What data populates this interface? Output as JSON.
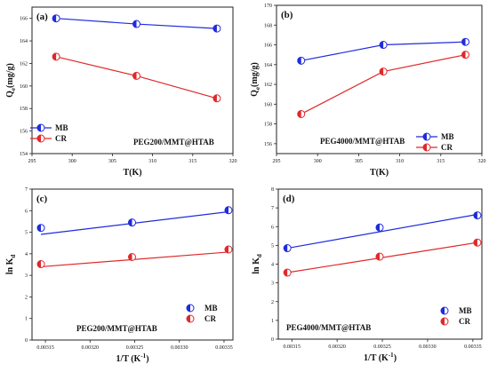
{
  "colors": {
    "mb": "#1f2bdc",
    "cr": "#e0282a",
    "fit": "#1f2bdc",
    "fit_cr": "#e0282a"
  },
  "chart_data": [
    {
      "type": "line",
      "panel_label": "(a)",
      "annotation": "PEG200/MMT@HTAB",
      "xlabel": "T(K)",
      "ylabel": "Qe(mg/g)",
      "ylabel_main": "Q",
      "ylabel_sub": "e",
      "ylabel_rest": "(mg/g)",
      "xlim": [
        295,
        320
      ],
      "ylim": [
        154,
        167
      ],
      "xticks": [
        "295",
        "300",
        "305",
        "310",
        "315",
        "320"
      ],
      "yticks": [
        "154",
        "156",
        "158",
        "160",
        "162",
        "164",
        "166"
      ],
      "legend_position": "bottom-left",
      "series": [
        {
          "name": "MB",
          "x": [
            298,
            308,
            318
          ],
          "values": [
            166.0,
            165.5,
            165.1
          ],
          "style": "line"
        },
        {
          "name": "CR",
          "x": [
            298,
            308,
            318
          ],
          "values": [
            162.6,
            160.9,
            158.9
          ],
          "style": "line"
        }
      ]
    },
    {
      "type": "line",
      "panel_label": "(b)",
      "annotation": "PEG4000/MMT@HTAB",
      "xlabel": "T(K)",
      "ylabel": "Qe(mg/g)",
      "ylabel_main": "Q",
      "ylabel_sub": "e",
      "ylabel_rest": "(mg/g)",
      "xlim": [
        295,
        320
      ],
      "ylim": [
        155,
        170
      ],
      "xticks": [
        "295",
        "300",
        "305",
        "310",
        "315",
        "320"
      ],
      "yticks": [
        "156",
        "158",
        "160",
        "162",
        "164",
        "166",
        "168",
        "170"
      ],
      "legend_position": "right",
      "series": [
        {
          "name": "MB",
          "x": [
            298,
            308,
            318
          ],
          "values": [
            164.4,
            166.0,
            166.3
          ],
          "style": "line"
        },
        {
          "name": "CR",
          "x": [
            298,
            308,
            318
          ],
          "values": [
            159.0,
            163.3,
            165.0
          ],
          "style": "line"
        }
      ]
    },
    {
      "type": "scatter",
      "panel_label": "(c)",
      "annotation": "PEG200/MMT@HTAB",
      "xlabel": "1/T (K-1)",
      "xlabel_main": "1/T (K",
      "xlabel_sup": "-1",
      "xlabel_end": ")",
      "ylabel": "ln Kd",
      "ylabel_main": "ln K",
      "ylabel_sub": "d",
      "ylabel_rest": "",
      "xlim": [
        0.003135,
        0.00336
      ],
      "ylim": [
        0,
        7
      ],
      "xticks": [
        "0.00315",
        "0.00320",
        "0.00325",
        "0.00330",
        "0.00335"
      ],
      "yticks": [
        "0",
        "1",
        "2",
        "3",
        "4",
        "5",
        "6",
        "7"
      ],
      "legend_position": "bottom-right",
      "series": [
        {
          "name": "MB",
          "x": [
            0.003145,
            0.003247,
            0.003355
          ],
          "values": [
            5.2,
            5.45,
            6.02
          ],
          "fit": [
            4.9,
            5.95
          ]
        },
        {
          "name": "CR",
          "x": [
            0.003145,
            0.003247,
            0.003355
          ],
          "values": [
            3.52,
            3.85,
            4.2
          ],
          "fit": [
            3.4,
            4.08
          ]
        }
      ]
    },
    {
      "type": "scatter",
      "panel_label": "(d)",
      "annotation": "PEG4000/MMT@HTAB",
      "xlabel": "1/T (K-1)",
      "xlabel_main": "1/T (K",
      "xlabel_sup": "-1",
      "xlabel_end": ")",
      "ylabel": "ln Kd",
      "ylabel_main": "ln K",
      "ylabel_sub": "d",
      "ylabel_rest": "",
      "xlim": [
        0.003135,
        0.00336
      ],
      "ylim": [
        0,
        8
      ],
      "xticks": [
        "0.00315",
        "0.00320",
        "0.00325",
        "0.00330",
        "0.00335"
      ],
      "yticks": [
        "0",
        "1",
        "2",
        "3",
        "4",
        "5",
        "6",
        "7",
        "8"
      ],
      "legend_position": "bottom-right",
      "series": [
        {
          "name": "MB",
          "x": [
            0.003145,
            0.003247,
            0.003355
          ],
          "values": [
            4.85,
            5.95,
            6.6
          ],
          "fit": [
            4.85,
            6.65
          ]
        },
        {
          "name": "CR",
          "x": [
            0.003145,
            0.003247,
            0.003355
          ],
          "values": [
            3.55,
            4.4,
            5.15
          ],
          "fit": [
            3.55,
            5.15
          ]
        }
      ]
    }
  ]
}
